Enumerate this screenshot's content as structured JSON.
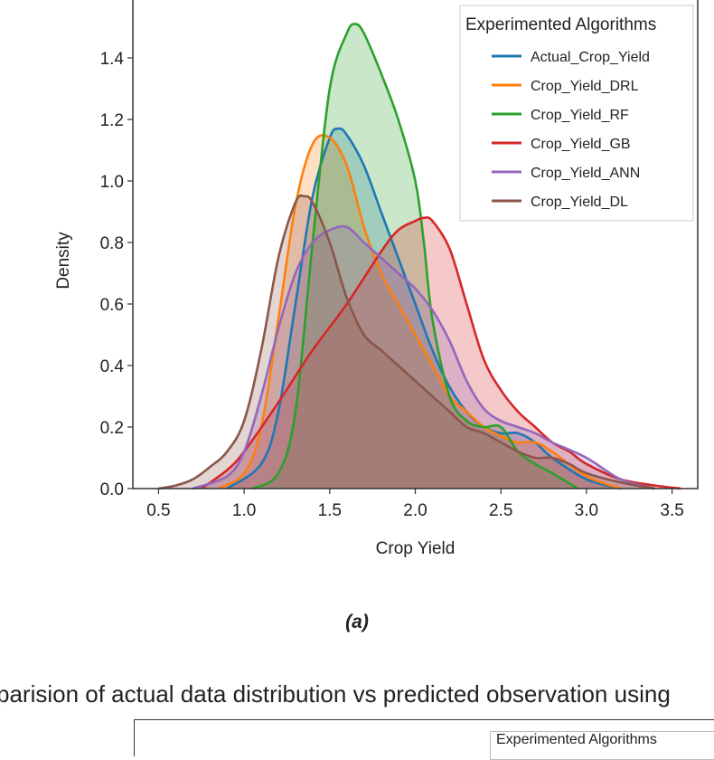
{
  "chart_data": {
    "type": "area",
    "xlabel": "Crop Yield",
    "ylabel": "Density",
    "xlim": [
      0.35,
      3.65
    ],
    "ylim": [
      0.0,
      1.6
    ],
    "xticks": [
      "0.5",
      "1.0",
      "1.5",
      "2.0",
      "2.5",
      "3.0",
      "3.5"
    ],
    "yticks": [
      "0.0",
      "0.2",
      "0.4",
      "0.6",
      "0.8",
      "1.0",
      "1.2",
      "1.4"
    ],
    "legend": {
      "title": "Experimented Algorithms",
      "placement": "top-right"
    },
    "series": [
      {
        "name": "Actual_Crop_Yield",
        "color": "#1f77b4",
        "x": [
          0.9,
          1.1,
          1.2,
          1.3,
          1.4,
          1.5,
          1.55,
          1.6,
          1.7,
          1.8,
          1.9,
          2.0,
          2.1,
          2.2,
          2.3,
          2.4,
          2.5,
          2.6,
          2.7,
          2.8,
          3.0,
          3.2
        ],
        "y": [
          0.0,
          0.08,
          0.25,
          0.6,
          0.95,
          1.14,
          1.17,
          1.15,
          1.05,
          0.9,
          0.75,
          0.6,
          0.45,
          0.33,
          0.25,
          0.2,
          0.18,
          0.18,
          0.15,
          0.1,
          0.03,
          0.0
        ]
      },
      {
        "name": "Crop_Yield_DRL",
        "color": "#ff7f0e",
        "x": [
          0.85,
          1.0,
          1.1,
          1.2,
          1.3,
          1.4,
          1.5,
          1.6,
          1.7,
          1.8,
          1.9,
          2.0,
          2.1,
          2.2,
          2.3,
          2.4,
          2.5,
          2.6,
          2.7,
          2.8,
          3.0,
          3.2
        ],
        "y": [
          0.0,
          0.05,
          0.2,
          0.55,
          0.92,
          1.12,
          1.14,
          1.05,
          0.85,
          0.7,
          0.6,
          0.5,
          0.4,
          0.3,
          0.25,
          0.2,
          0.17,
          0.15,
          0.15,
          0.12,
          0.04,
          0.0
        ]
      },
      {
        "name": "Crop_Yield_RF",
        "color": "#2ca02c",
        "x": [
          1.05,
          1.2,
          1.3,
          1.4,
          1.5,
          1.6,
          1.65,
          1.7,
          1.8,
          1.9,
          2.0,
          2.05,
          2.1,
          2.2,
          2.3,
          2.4,
          2.5,
          2.6,
          2.7,
          2.8,
          2.95
        ],
        "y": [
          0.0,
          0.05,
          0.25,
          0.8,
          1.3,
          1.48,
          1.51,
          1.48,
          1.35,
          1.2,
          1.0,
          0.8,
          0.55,
          0.3,
          0.22,
          0.2,
          0.2,
          0.12,
          0.08,
          0.05,
          0.0
        ]
      },
      {
        "name": "Crop_Yield_GB",
        "color": "#d62728",
        "x": [
          0.75,
          0.9,
          1.0,
          1.2,
          1.4,
          1.6,
          1.8,
          1.9,
          2.0,
          2.05,
          2.1,
          2.2,
          2.3,
          2.4,
          2.5,
          2.6,
          2.7,
          2.8,
          2.9,
          3.0,
          3.2,
          3.4,
          3.55
        ],
        "y": [
          0.0,
          0.06,
          0.12,
          0.28,
          0.45,
          0.6,
          0.77,
          0.84,
          0.87,
          0.88,
          0.87,
          0.78,
          0.6,
          0.42,
          0.32,
          0.25,
          0.2,
          0.15,
          0.12,
          0.08,
          0.03,
          0.01,
          0.0
        ]
      },
      {
        "name": "Crop_Yield_ANN",
        "color": "#9467bd",
        "x": [
          0.7,
          0.9,
          1.0,
          1.1,
          1.2,
          1.3,
          1.4,
          1.5,
          1.6,
          1.7,
          1.8,
          1.9,
          2.0,
          2.1,
          2.2,
          2.3,
          2.4,
          2.5,
          2.6,
          2.7,
          2.8,
          3.0,
          3.2,
          3.4
        ],
        "y": [
          0.0,
          0.04,
          0.12,
          0.3,
          0.52,
          0.7,
          0.8,
          0.84,
          0.85,
          0.8,
          0.75,
          0.7,
          0.65,
          0.58,
          0.48,
          0.35,
          0.26,
          0.22,
          0.2,
          0.18,
          0.15,
          0.1,
          0.03,
          0.0
        ]
      },
      {
        "name": "Crop_Yield_DL",
        "color": "#8c564b",
        "x": [
          0.5,
          0.6,
          0.7,
          0.8,
          0.9,
          1.0,
          1.1,
          1.2,
          1.3,
          1.35,
          1.4,
          1.5,
          1.6,
          1.7,
          1.8,
          1.9,
          2.0,
          2.1,
          2.2,
          2.3,
          2.4,
          2.5,
          2.6,
          2.7,
          2.8,
          2.9,
          3.0,
          3.2,
          3.4
        ],
        "y": [
          0.0,
          0.01,
          0.03,
          0.07,
          0.12,
          0.22,
          0.45,
          0.75,
          0.93,
          0.95,
          0.93,
          0.8,
          0.62,
          0.5,
          0.45,
          0.4,
          0.35,
          0.3,
          0.25,
          0.2,
          0.18,
          0.15,
          0.12,
          0.1,
          0.1,
          0.08,
          0.05,
          0.02,
          0.0
        ]
      }
    ]
  },
  "caption": "(a)",
  "next_figure": {
    "title": "parision of actual data distribution vs predicted observation using",
    "legend_title": "Experimented Algorithms"
  }
}
